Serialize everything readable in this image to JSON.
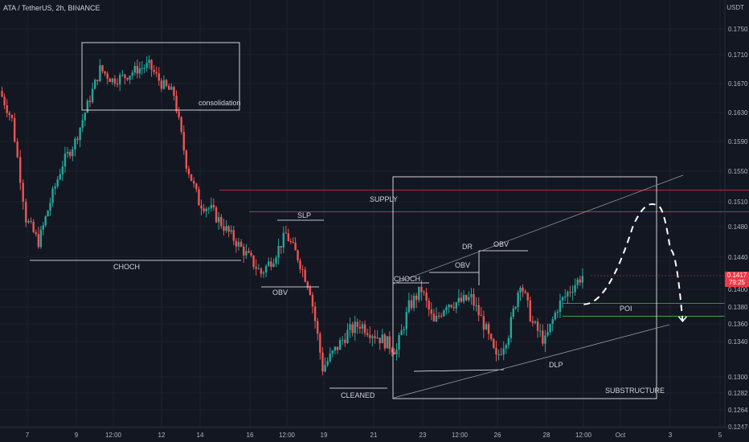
{
  "header": {
    "title": "ATA / TetherUS, 2h, BINANCE"
  },
  "axis": {
    "currency": "USDT",
    "y_ticks": [
      "0.1750",
      "0.1710",
      "0.1670",
      "0.1630",
      "0.1590",
      "0.1550",
      "0.1510",
      "0.1480",
      "0.1440",
      "0.1400",
      "0.1380",
      "0.1360",
      "0.1340",
      "0.1300",
      "0.1282",
      "0.1264",
      "0.1247"
    ],
    "x_ticks": [
      "7",
      "9",
      "12:00",
      "12",
      "14",
      "16",
      "12:00",
      "19",
      "21",
      "23",
      "12:00",
      "26",
      "28",
      "12:00",
      "Oct",
      "3",
      "5"
    ]
  },
  "current_price": {
    "value": "0.1417",
    "countdown": "79:25"
  },
  "annotations": {
    "consolidation": "consolidation",
    "choch_left": "CHOCH",
    "supply": "SUPPLY",
    "slp": "SLP",
    "obv_low": "OBV",
    "cleaned": "CLEANED",
    "choch_right": "CHOCH",
    "obv_mid": "OBV",
    "dr": "DR",
    "obv_high": "OBV",
    "poi": "POI",
    "dlp": "DLP",
    "substructure": "SUBSTRUCTURE"
  },
  "colors": {
    "background": "#131722",
    "bull": "#26a69a",
    "bear": "#ef5350",
    "supply_line": "#f23645",
    "poi_line": "#4caf50",
    "annotation": "#ffffff"
  },
  "chart_data": {
    "type": "candlestick",
    "title": "ATA / TetherUS, 2h, BINANCE",
    "ylim": [
      0.1247,
      0.175
    ],
    "close_path": [
      [
        "Sep 6",
        0.166
      ],
      [
        "Sep 6 12:00",
        0.162
      ],
      [
        "Sep 7",
        0.149
      ],
      [
        "Sep 7 12:00",
        0.146
      ],
      [
        "Sep 8",
        0.151
      ],
      [
        "Sep 8 12:00",
        0.156
      ],
      [
        "Sep 9",
        0.159
      ],
      [
        "Sep 9 12:00",
        0.164
      ],
      [
        "Sep 10",
        0.169
      ],
      [
        "Sep 10 12:00",
        0.1675
      ],
      [
        "Sep 11",
        0.168
      ],
      [
        "Sep 11 12:00",
        0.169
      ],
      [
        "Sep 12",
        0.1695
      ],
      [
        "Sep 12 12:00",
        0.167
      ],
      [
        "Sep 13",
        0.1655
      ],
      [
        "Sep 13 12:00",
        0.156
      ],
      [
        "Sep 14",
        0.151
      ],
      [
        "Sep 14 12:00",
        0.15
      ],
      [
        "Sep 15",
        0.148
      ],
      [
        "Sep 15 12:00",
        0.146
      ],
      [
        "Sep 16",
        0.144
      ],
      [
        "Sep 16 12:00",
        0.142
      ],
      [
        "Sep 17",
        0.144
      ],
      [
        "Sep 17 12:00",
        0.147
      ],
      [
        "Sep 18",
        0.144
      ],
      [
        "Sep 18 12:00",
        0.14
      ],
      [
        "Sep 19",
        0.131
      ],
      [
        "Sep 19 12:00",
        0.133
      ],
      [
        "Sep 20",
        0.135
      ],
      [
        "Sep 20 12:00",
        0.136
      ],
      [
        "Sep 21",
        0.135
      ],
      [
        "Sep 21 12:00",
        0.134
      ],
      [
        "Sep 22",
        0.133
      ],
      [
        "Sep 22 12:00",
        0.138
      ],
      [
        "Sep 23",
        0.14
      ],
      [
        "Sep 23 12:00",
        0.136
      ],
      [
        "Sep 24",
        0.1385
      ],
      [
        "Sep 24 12:00",
        0.1385
      ],
      [
        "Sep 25",
        0.139
      ],
      [
        "Sep 25 12:00",
        0.136
      ],
      [
        "Sep 26",
        0.132
      ],
      [
        "Sep 26 12:00",
        0.135
      ],
      [
        "Sep 27",
        0.141
      ],
      [
        "Sep 27 12:00",
        0.136
      ],
      [
        "Sep 28",
        0.134
      ],
      [
        "Sep 28 12:00",
        0.138
      ],
      [
        "Sep 29",
        0.14
      ],
      [
        "Sep 29 12:00",
        0.1417
      ]
    ],
    "projection": [
      [
        "Sep 29 12:00",
        0.1383
      ],
      [
        "Oct 1 12:00",
        0.148
      ],
      [
        "Oct 2 12:00",
        0.1505
      ],
      [
        "Oct 3",
        0.145
      ],
      [
        "Oct 3 12:00",
        0.1363
      ]
    ],
    "levels": [
      {
        "label": "SUPPLY",
        "price": 0.1525
      },
      {
        "label": "SUPPLY",
        "price": 0.1498
      },
      {
        "label": "POI",
        "price": 0.1384
      },
      {
        "label": "POI",
        "price": 0.1369
      }
    ]
  }
}
